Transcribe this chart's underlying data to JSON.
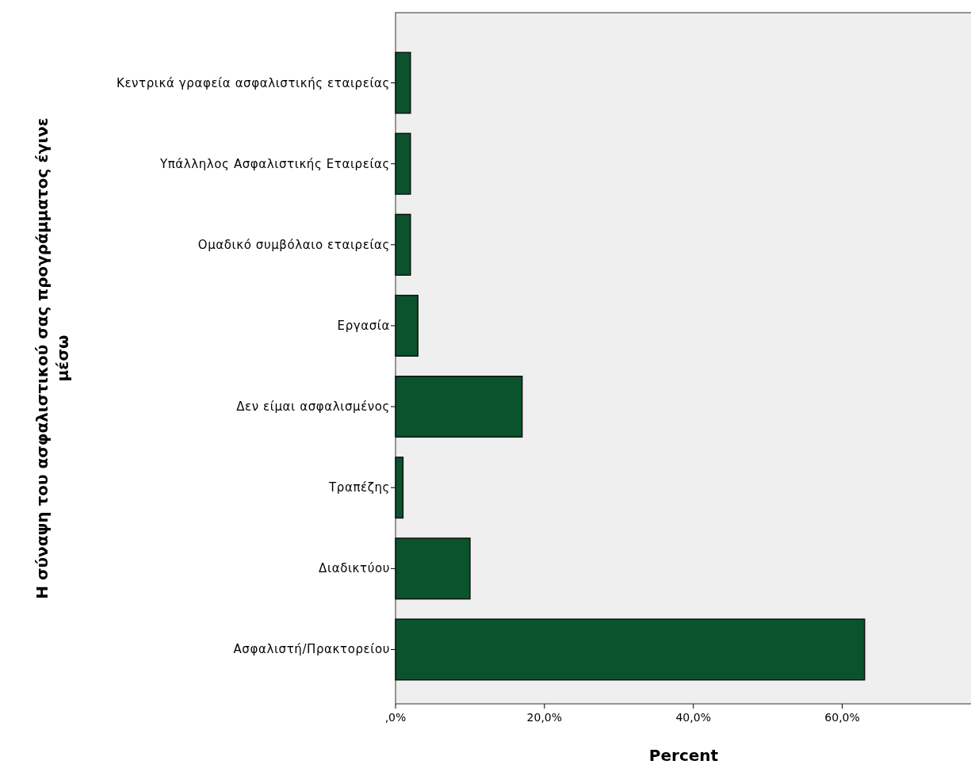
{
  "chart_data": {
    "type": "bar",
    "orientation": "horizontal",
    "xlabel": "Percent",
    "ylabel": "Η σύναψη του ασφαλιστικού σας προγράμματος έγινε μέσω",
    "categories": [
      "Κεντρικά γραφεία ασφαλιστικής εταιρείας",
      "Υπάλληλος Ασφαλιστικής Εταιρείας",
      "Ομαδικό συμβόλαιο εταιρείας",
      "Εργασία",
      "Δεν είμαι ασφαλισμένος",
      "Τραπέζης",
      "Διαδικτύου",
      "Ασφαλιστή/Πρακτορείου"
    ],
    "values": [
      2.0,
      2.0,
      2.0,
      3.0,
      17.0,
      1.0,
      10.0,
      63.0
    ],
    "color": "#0b532d",
    "xlim": [
      0,
      77.4
    ],
    "xticks": [
      {
        "value": 0,
        "label": ",0%"
      },
      {
        "value": 20,
        "label": "20,0%"
      },
      {
        "value": 40,
        "label": "40,0%"
      },
      {
        "value": 60,
        "label": "60,0%"
      }
    ],
    "grid": false
  }
}
